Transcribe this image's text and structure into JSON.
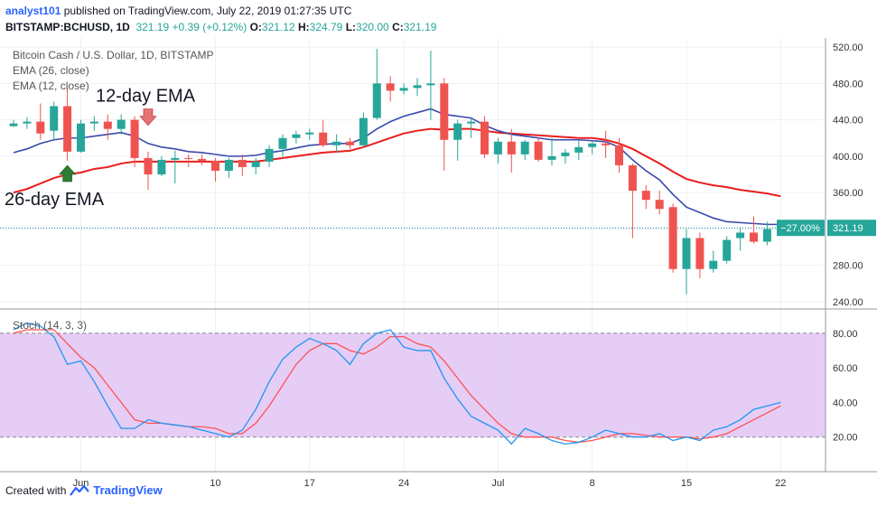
{
  "header": {
    "author": "analyst101",
    "published": " published on TradingView.com, July 22, 2019 01:27:35 UTC",
    "symbol": "BITSTAMP:BCHUSD, 1D",
    "last": "321.19",
    "change": "+0.39 (+0.12%)",
    "o_label": "O:",
    "o_val": "321.12",
    "h_label": "H:",
    "h_val": "324.79",
    "l_label": "L:",
    "l_val": "320.00",
    "c_label": "C:",
    "c_val": "321.19"
  },
  "footer": {
    "created_with": "Created with",
    "brand": "TradingView"
  },
  "colors": {
    "up": "#26a69a",
    "down": "#ef5350",
    "ema26": "#e91e1e",
    "ema12": "#3949ab",
    "stoch_k": "#2196f3",
    "stoch_d": "#ff5252",
    "stoch_band": "#e1c4f5",
    "price_line": "#00838f",
    "arrow_up": "#2e7d32",
    "arrow_down": "#e57373"
  },
  "chart_data": [
    {
      "type": "candlestick",
      "title": "Bitcoin Cash / U.S. Dollar, 1D, BITSTAMP",
      "legend": [
        "EMA (26, close)",
        "EMA (12, close)"
      ],
      "y_ticks": [
        240,
        280,
        320,
        360,
        400,
        440,
        480,
        520
      ],
      "ylim": [
        232,
        530
      ],
      "x_ticks": [
        {
          "label": "Jun",
          "i": 5
        },
        {
          "label": "10",
          "i": 15
        },
        {
          "label": "17",
          "i": 22
        },
        {
          "label": "24",
          "i": 29
        },
        {
          "label": "Jul",
          "i": 36
        },
        {
          "label": "8",
          "i": 43
        },
        {
          "label": "15",
          "i": 50
        },
        {
          "label": "22",
          "i": 57
        }
      ],
      "ohlc": [
        [
          433,
          440,
          432,
          436
        ],
        [
          436,
          443,
          430,
          438
        ],
        [
          438,
          458,
          418,
          425
        ],
        [
          428,
          460,
          418,
          455
        ],
        [
          455,
          475,
          395,
          405
        ],
        [
          405,
          440,
          404,
          436
        ],
        [
          436,
          444,
          428,
          438
        ],
        [
          438,
          446,
          418,
          430
        ],
        [
          430,
          446,
          424,
          440
        ],
        [
          440,
          444,
          388,
          398
        ],
        [
          398,
          405,
          363,
          380
        ],
        [
          380,
          400,
          378,
          396
        ],
        [
          396,
          406,
          370,
          398
        ],
        [
          398,
          402,
          388,
          397
        ],
        [
          397,
          402,
          390,
          395
        ],
        [
          395,
          398,
          372,
          384
        ],
        [
          384,
          398,
          376,
          396
        ],
        [
          396,
          402,
          378,
          388
        ],
        [
          388,
          398,
          380,
          394
        ],
        [
          394,
          412,
          388,
          408
        ],
        [
          408,
          424,
          400,
          420
        ],
        [
          420,
          428,
          414,
          424
        ],
        [
          424,
          430,
          418,
          426
        ],
        [
          426,
          440,
          410,
          412
        ],
        [
          412,
          424,
          404,
          416
        ],
        [
          416,
          420,
          408,
          412
        ],
        [
          412,
          448,
          410,
          442
        ],
        [
          442,
          518,
          440,
          480
        ],
        [
          480,
          488,
          460,
          472
        ],
        [
          472,
          480,
          468,
          475
        ],
        [
          475,
          486,
          466,
          478
        ],
        [
          478,
          516,
          440,
          480
        ],
        [
          480,
          486,
          384,
          418
        ],
        [
          418,
          440,
          395,
          436
        ],
        [
          436,
          442,
          420,
          438
        ],
        [
          438,
          444,
          398,
          402
        ],
        [
          402,
          420,
          392,
          416
        ],
        [
          416,
          430,
          382,
          402
        ],
        [
          402,
          418,
          396,
          416
        ],
        [
          416,
          420,
          394,
          396
        ],
        [
          396,
          420,
          390,
          400
        ],
        [
          400,
          408,
          392,
          404
        ],
        [
          404,
          418,
          396,
          410
        ],
        [
          410,
          416,
          402,
          414
        ],
        [
          414,
          428,
          398,
          412
        ],
        [
          412,
          420,
          382,
          390
        ],
        [
          390,
          392,
          310,
          362
        ],
        [
          362,
          368,
          342,
          352
        ],
        [
          352,
          362,
          336,
          342
        ],
        [
          344,
          348,
          272,
          276
        ],
        [
          276,
          320,
          248,
          310
        ],
        [
          310,
          316,
          266,
          276
        ],
        [
          276,
          296,
          272,
          285
        ],
        [
          285,
          312,
          282,
          308
        ],
        [
          310,
          322,
          296,
          316
        ],
        [
          316,
          334,
          304,
          306
        ],
        [
          306,
          328,
          302,
          320
        ],
        [
          321.12,
          324.79,
          320,
          321.19
        ]
      ],
      "ema12": [
        404,
        408,
        414,
        418,
        420,
        420,
        422,
        424,
        426,
        422,
        414,
        410,
        408,
        405,
        404,
        402,
        400,
        400,
        401,
        404,
        406,
        409,
        412,
        413,
        414,
        414,
        420,
        430,
        438,
        444,
        448,
        452,
        446,
        444,
        442,
        434,
        428,
        424,
        422,
        420,
        418,
        418,
        418,
        417,
        416,
        410,
        396,
        384,
        374,
        358,
        344,
        338,
        332,
        328,
        327,
        326,
        325,
        325
      ],
      "ema26": [
        360,
        364,
        370,
        376,
        380,
        382,
        386,
        388,
        392,
        394,
        394,
        394,
        394,
        394,
        394,
        394,
        394,
        394,
        394,
        396,
        398,
        400,
        402,
        404,
        405,
        406,
        410,
        415,
        420,
        425,
        428,
        430,
        429,
        430,
        430,
        428,
        426,
        425,
        424,
        423,
        422,
        421,
        420,
        420,
        418,
        414,
        408,
        400,
        392,
        383,
        375,
        371,
        368,
        366,
        363,
        361,
        359,
        356
      ],
      "last_price": 321.19,
      "last_price_label": "321.19",
      "change_label": "−27.00%",
      "annotations": [
        {
          "text": "12-day EMA",
          "arrow": "down",
          "i": 10,
          "price": 434
        },
        {
          "text": "26-day EMA",
          "arrow": "up",
          "i": 4,
          "price": 390
        }
      ]
    },
    {
      "type": "line",
      "title": "Stoch (14, 3, 3)",
      "y_ticks": [
        20,
        40,
        60,
        80
      ],
      "ylim": [
        0,
        94
      ],
      "band": [
        20,
        80
      ],
      "k": [
        82,
        86,
        84,
        78,
        62,
        64,
        52,
        38,
        25,
        25,
        30,
        28,
        27,
        26,
        24,
        22,
        20,
        24,
        36,
        52,
        65,
        72,
        77,
        74,
        70,
        62,
        74,
        80,
        82,
        72,
        70,
        70,
        54,
        42,
        32,
        28,
        24,
        16,
        25,
        22,
        18,
        16,
        17,
        20,
        24,
        22,
        20,
        20,
        22,
        18,
        20,
        18,
        24,
        26,
        30,
        36,
        38,
        40
      ],
      "d": [
        80,
        82,
        82,
        82,
        74,
        66,
        60,
        50,
        40,
        30,
        28,
        28,
        27,
        26,
        26,
        25,
        22,
        22,
        28,
        38,
        50,
        62,
        70,
        74,
        74,
        70,
        68,
        72,
        78,
        78,
        74,
        72,
        64,
        54,
        44,
        36,
        28,
        22,
        20,
        20,
        20,
        18,
        17,
        18,
        20,
        22,
        22,
        21,
        20,
        20,
        20,
        19,
        20,
        22,
        26,
        30,
        34,
        38
      ]
    }
  ]
}
